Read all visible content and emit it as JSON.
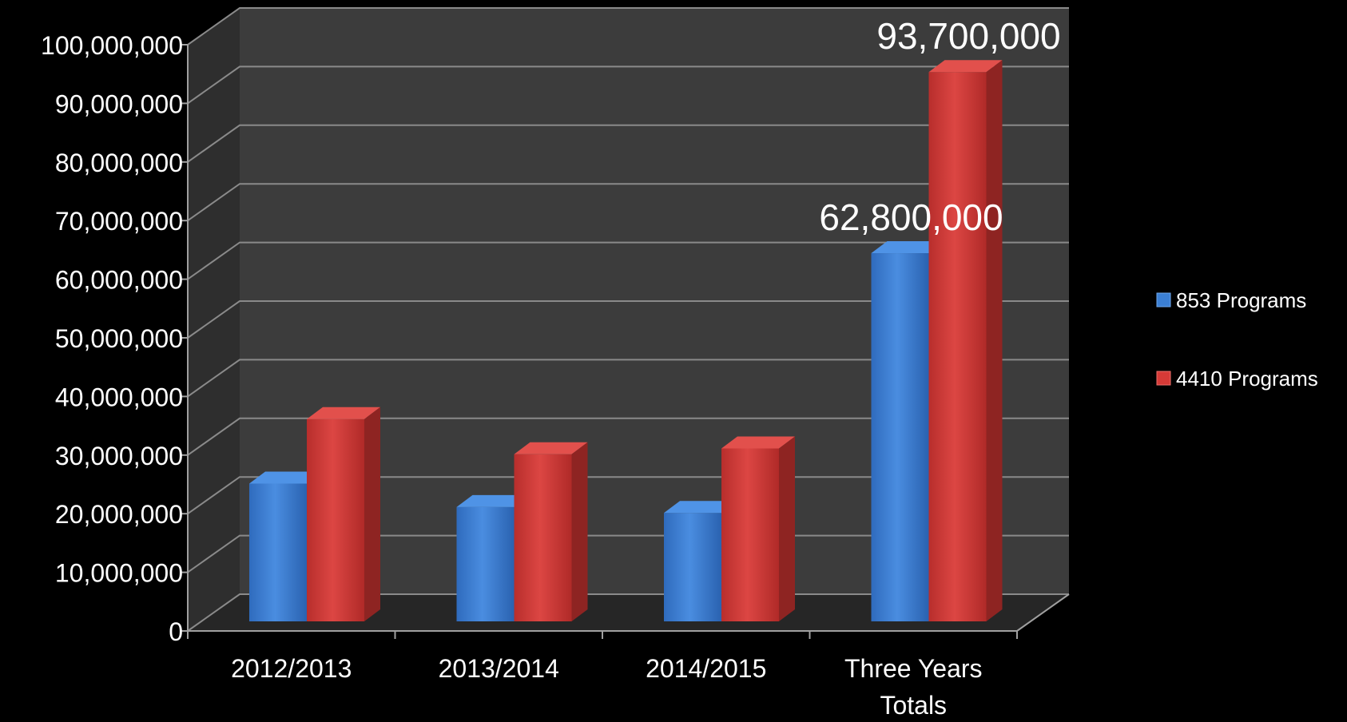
{
  "chart_data": {
    "type": "bar",
    "title": "",
    "xlabel": "",
    "ylabel": "",
    "categories": [
      "2012/2013",
      "2013/2014",
      "2014/2015",
      "Three Years Totals"
    ],
    "category_label_lines": [
      [
        "2012/2013"
      ],
      [
        "2013/2014"
      ],
      [
        "2014/2015"
      ],
      [
        "Three Years",
        "Totals"
      ]
    ],
    "series": [
      {
        "name": "853 Programs",
        "color": "#3b7fd4",
        "values": [
          23500000,
          19500000,
          18500000,
          62800000
        ]
      },
      {
        "name": "4410 Programs",
        "color": "#d63a37",
        "values": [
          34500000,
          28500000,
          29500000,
          93700000
        ]
      }
    ],
    "data_labels": [
      {
        "series": 0,
        "category": 3,
        "text": "62,800,000"
      },
      {
        "series": 1,
        "category": 3,
        "text": "93,700,000"
      }
    ],
    "ylim": [
      0,
      100000000
    ],
    "yticks": [
      0,
      10000000,
      20000000,
      30000000,
      40000000,
      50000000,
      60000000,
      70000000,
      80000000,
      90000000,
      100000000
    ],
    "ytick_labels": [
      "0",
      "10,000,000",
      "20,000,000",
      "30,000,000",
      "40,000,000",
      "50,000,000",
      "60,000,000",
      "70,000,000",
      "80,000,000",
      "90,000,000",
      "100,000,000"
    ],
    "grid": true,
    "legend_position": "right",
    "style": {
      "background": "#000000",
      "back_wall": "#3c3c3c",
      "side_wall": "#2e2e2e",
      "floor": "#262626",
      "gridline": "#8a8a8a",
      "axis": "#a0a0a0",
      "text": "#ffffff"
    }
  }
}
